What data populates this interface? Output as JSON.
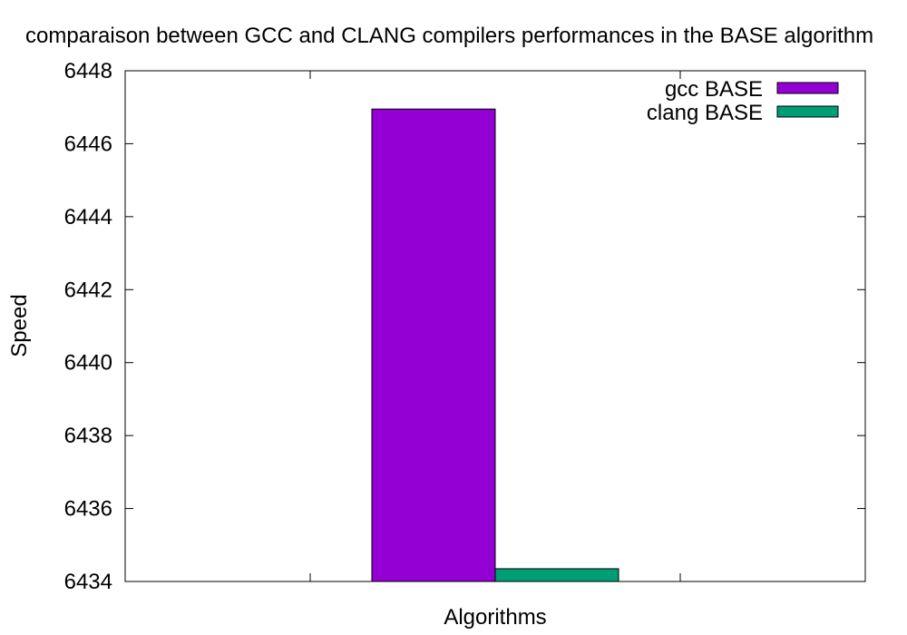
{
  "chart_data": {
    "type": "bar",
    "title": "comparaison between GCC and CLANG compilers performances in the BASE algorithm",
    "xlabel": "Algorithms",
    "ylabel": "Speed",
    "ylim": [
      6434,
      6448
    ],
    "yticks": [
      "6434",
      "6436",
      "6438",
      "6440",
      "6442",
      "6444",
      "6446",
      "6448"
    ],
    "categories": [
      ""
    ],
    "series": [
      {
        "name": "gcc BASE",
        "color": "#9400d3",
        "values": [
          6446.95
        ]
      },
      {
        "name": "clang BASE",
        "color": "#009e73",
        "values": [
          6434.35
        ]
      }
    ],
    "legend": "top-right",
    "grid": false
  }
}
